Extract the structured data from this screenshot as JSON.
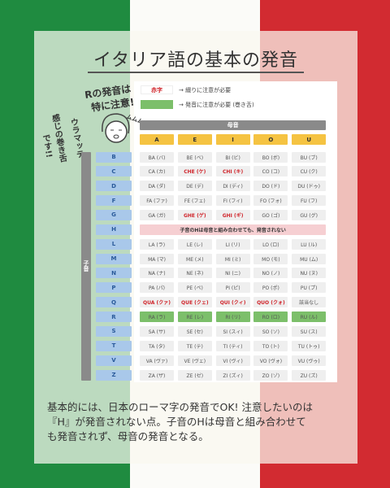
{
  "header": {
    "title": "イタリア語の基本の発音"
  },
  "note": {
    "lines": [
      "Rの発音は",
      "特に注意!"
    ],
    "sound": "ムムムズ",
    "vertical": [
      "ウラマッテ",
      "感じの巻き舌",
      "です!!"
    ]
  },
  "legend": [
    {
      "label": "赤字",
      "text": "→ 綴りに注意が必要",
      "color": "#d0262c"
    },
    {
      "label": "",
      "text": "→ 発音に注意が必要 (巻き舌)",
      "color": "#7cbf6a"
    }
  ],
  "table": {
    "vowel_header": "母音",
    "consonant_header": "子音",
    "vowels": [
      "A",
      "E",
      "I",
      "O",
      "U"
    ],
    "rows": [
      {
        "consonant": "B",
        "cells": [
          {
            "text": "BA (バ)"
          },
          {
            "text": "BE (ベ)"
          },
          {
            "text": "BI (ビ)"
          },
          {
            "text": "BO (ボ)"
          },
          {
            "text": "BU (ブ)"
          }
        ]
      },
      {
        "consonant": "C",
        "cells": [
          {
            "text": "CA (カ)"
          },
          {
            "text": "CHE (ケ)",
            "color": "#d0262c"
          },
          {
            "text": "CHI (キ)",
            "color": "#d0262c"
          },
          {
            "text": "CO (コ)"
          },
          {
            "text": "CU (ク)"
          }
        ]
      },
      {
        "consonant": "D",
        "cells": [
          {
            "text": "DA (ダ)"
          },
          {
            "text": "DE (デ)"
          },
          {
            "text": "DI (ディ)"
          },
          {
            "text": "DO (ド)"
          },
          {
            "text": "DU (ドゥ)"
          }
        ]
      },
      {
        "consonant": "F",
        "cells": [
          {
            "text": "FA (ファ)"
          },
          {
            "text": "FE (フェ)"
          },
          {
            "text": "FI (フィ)"
          },
          {
            "text": "FO (フォ)"
          },
          {
            "text": "FU (フ)"
          }
        ]
      },
      {
        "consonant": "G",
        "cells": [
          {
            "text": "GA (ガ)"
          },
          {
            "text": "GHE (ゲ)",
            "color": "#d0262c"
          },
          {
            "text": "GHI (ギ)",
            "color": "#d0262c"
          },
          {
            "text": "GO (ゴ)"
          },
          {
            "text": "GU (グ)"
          }
        ]
      },
      {
        "consonant": "H",
        "merged": "子音のHは母音と組み合わせても、発音されない"
      },
      {
        "consonant": "L",
        "cells": [
          {
            "text": "LA (ラ)"
          },
          {
            "text": "LE (レ)"
          },
          {
            "text": "LI (リ)"
          },
          {
            "text": "LO (ロ)"
          },
          {
            "text": "LU (ル)"
          }
        ]
      },
      {
        "consonant": "M",
        "cells": [
          {
            "text": "MA (マ)"
          },
          {
            "text": "ME (メ)"
          },
          {
            "text": "MI (ミ)"
          },
          {
            "text": "MO (モ)"
          },
          {
            "text": "MU (ム)"
          }
        ]
      },
      {
        "consonant": "N",
        "cells": [
          {
            "text": "NA (ナ)"
          },
          {
            "text": "NE (ネ)"
          },
          {
            "text": "NI (ニ)"
          },
          {
            "text": "NO (ノ)"
          },
          {
            "text": "NU (ヌ)"
          }
        ]
      },
      {
        "consonant": "P",
        "cells": [
          {
            "text": "PA (パ)"
          },
          {
            "text": "PE (ペ)"
          },
          {
            "text": "PI (ピ)"
          },
          {
            "text": "PO (ポ)"
          },
          {
            "text": "PU (プ)"
          }
        ]
      },
      {
        "consonant": "Q",
        "cells": [
          {
            "text": "QUA (クァ)",
            "color": "#d0262c"
          },
          {
            "text": "QUE (クェ)",
            "color": "#d0262c"
          },
          {
            "text": "QUI (クィ)",
            "color": "#d0262c"
          },
          {
            "text": "QUO (クォ)",
            "color": "#d0262c"
          },
          {
            "text": "該当なし"
          }
        ]
      },
      {
        "consonant": "R",
        "fill": "#7cbf6a",
        "cells": [
          {
            "text": "RA (ラ)"
          },
          {
            "text": "RE (レ)"
          },
          {
            "text": "RI (リ)"
          },
          {
            "text": "RO (ロ)"
          },
          {
            "text": "RU (ル)"
          }
        ]
      },
      {
        "consonant": "S",
        "cells": [
          {
            "text": "SA (サ)"
          },
          {
            "text": "SE (セ)"
          },
          {
            "text": "SI (スィ)"
          },
          {
            "text": "SO (ソ)"
          },
          {
            "text": "SU (ス)"
          }
        ]
      },
      {
        "consonant": "T",
        "cells": [
          {
            "text": "TA (タ)"
          },
          {
            "text": "TE (テ)"
          },
          {
            "text": "TI (ティ)"
          },
          {
            "text": "TO (ト)"
          },
          {
            "text": "TU (トゥ)"
          }
        ]
      },
      {
        "consonant": "V",
        "cells": [
          {
            "text": "VA (ヴァ)"
          },
          {
            "text": "VE (ヴェ)"
          },
          {
            "text": "VI (ヴィ)"
          },
          {
            "text": "VO (ヴォ)"
          },
          {
            "text": "VU (ヴゥ)"
          }
        ]
      },
      {
        "consonant": "Z",
        "cells": [
          {
            "text": "ZA (ザ)"
          },
          {
            "text": "ZE (ゼ)"
          },
          {
            "text": "ZI (ズィ)"
          },
          {
            "text": "ZO (ゾ)"
          },
          {
            "text": "ZU (ズ)"
          }
        ]
      }
    ]
  },
  "body": {
    "lines": [
      "基本的には、日本のローマ字の発音でOK! 注意したいのは",
      "『H』が発音されない点。子音のHは母音と組み合わせて",
      "も発音されず、母音の発音となる。"
    ]
  }
}
